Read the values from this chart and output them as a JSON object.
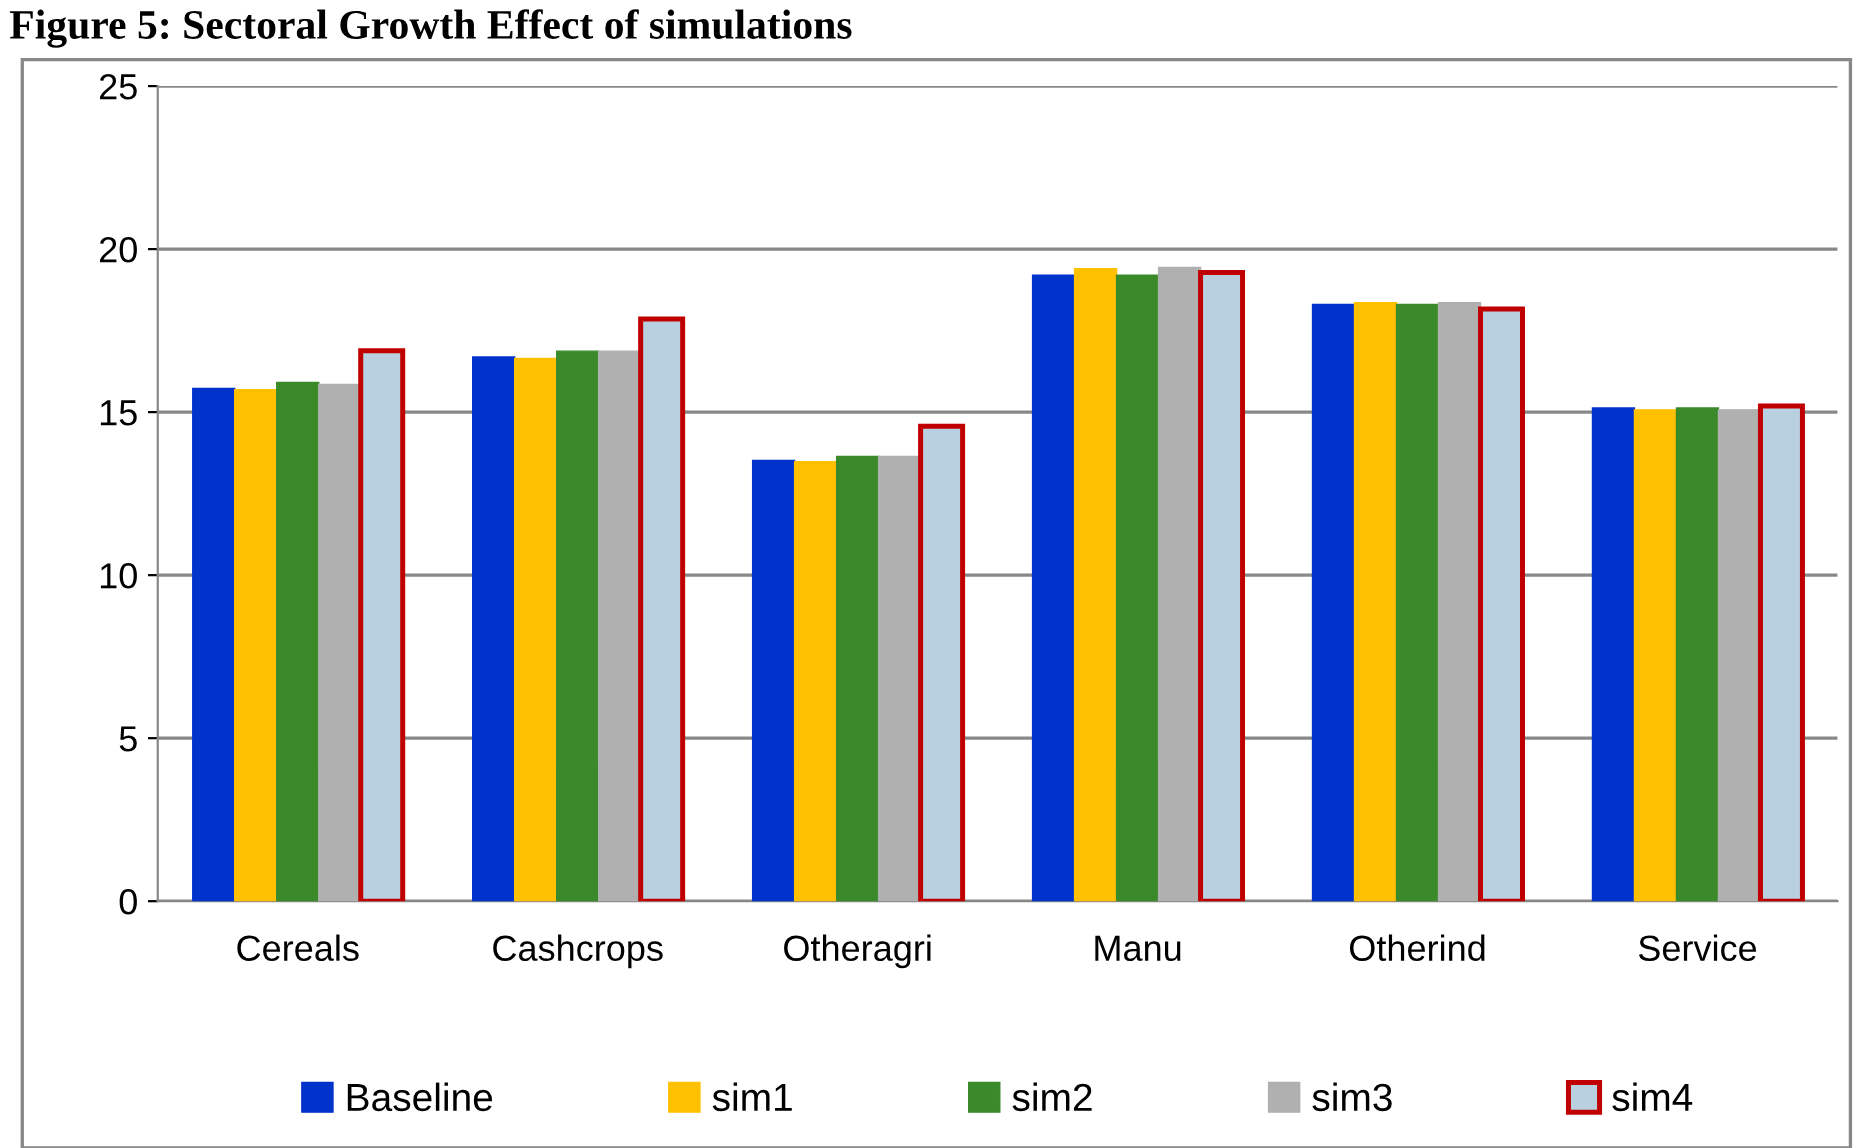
{
  "chart_data": {
    "type": "bar",
    "title": "Figure 5: Sectoral Growth Effect of simulations",
    "categories": [
      "Cereals",
      "Cashcrops",
      "Otheragri",
      "Manu",
      "Otherind",
      "Service"
    ],
    "series": [
      {
        "name": "Baseline",
        "color": "#0033cc",
        "values": [
          15.73,
          16.69,
          13.52,
          19.2,
          18.3,
          15.13
        ]
      },
      {
        "name": "sim1",
        "color": "#ffc000",
        "values": [
          15.69,
          16.65,
          13.48,
          19.4,
          18.36,
          15.07
        ]
      },
      {
        "name": "sim2",
        "color": "#3a8a2a",
        "values": [
          15.91,
          16.87,
          13.64,
          19.2,
          18.3,
          15.13
        ]
      },
      {
        "name": "sim3",
        "color": "#b0b0b0",
        "values": [
          15.85,
          16.87,
          13.64,
          19.44,
          18.36,
          15.07
        ]
      },
      {
        "name": "sim4",
        "color": "#b8d0e0",
        "values": [
          16.88,
          17.86,
          14.57,
          19.28,
          18.16,
          15.19
        ]
      }
    ],
    "ylim": [
      0,
      25
    ],
    "yticks": [
      0,
      5,
      10,
      15,
      20,
      25
    ],
    "grid": "y",
    "legend": "bottom"
  }
}
